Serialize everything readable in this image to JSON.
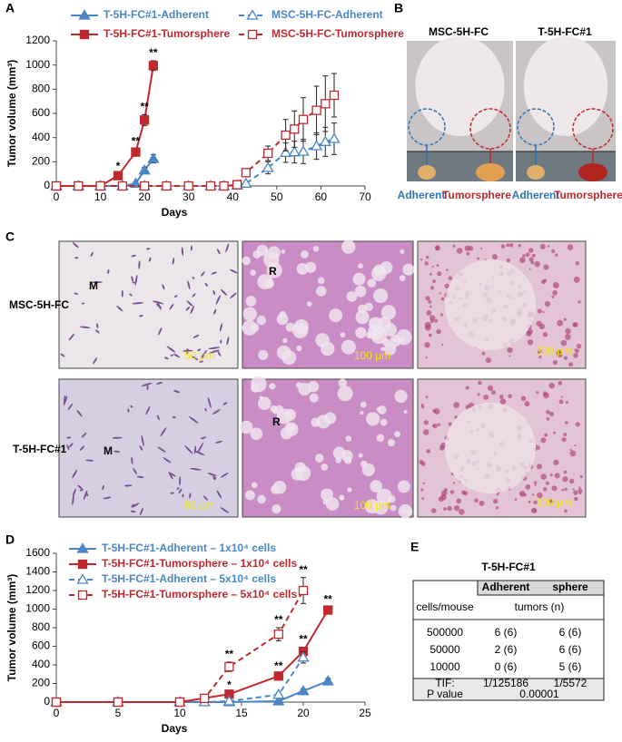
{
  "panel_labels": [
    "A",
    "B",
    "C",
    "D",
    "E"
  ],
  "chart_data": [
    {
      "type": "line",
      "xlabel": "Days",
      "ylabel": "Tumor volume (mm³)",
      "xlim": [
        0,
        70
      ],
      "xticks": [
        0,
        10,
        20,
        30,
        40,
        50,
        60,
        70
      ],
      "ylim": [
        0,
        1200
      ],
      "yticks": [
        0,
        200,
        400,
        600,
        800,
        1000,
        1200
      ],
      "legend_columns": 2,
      "series": [
        {
          "name": "T-5H-FC#1-Adherent",
          "color": "#4a86c5",
          "marker": "triangle",
          "filled": true,
          "dashed": false,
          "x": [
            0,
            5,
            10,
            15,
            18,
            20,
            22
          ],
          "values": [
            0,
            0,
            0,
            0,
            20,
            130,
            225
          ],
          "errors": [
            0,
            0,
            0,
            0,
            10,
            25,
            35
          ]
        },
        {
          "name": "T-5H-FC#1-Tumorsphere",
          "color": "#c0282d",
          "marker": "square",
          "filled": true,
          "dashed": false,
          "x": [
            0,
            5,
            10,
            14,
            18,
            20,
            22
          ],
          "values": [
            0,
            0,
            0,
            85,
            280,
            545,
            995
          ],
          "errors": [
            0,
            0,
            0,
            15,
            25,
            45,
            40
          ],
          "significance": [
            null,
            null,
            null,
            "*",
            "**",
            "**",
            "**"
          ]
        },
        {
          "name": "MSC-5H-FC-Adherent",
          "color": "#4a86c5",
          "marker": "triangle",
          "filled": false,
          "dashed": true,
          "x": [
            0,
            5,
            10,
            15,
            20,
            25,
            30,
            35,
            38,
            41,
            43,
            48,
            52,
            54,
            56,
            59,
            61,
            63
          ],
          "values": [
            0,
            0,
            0,
            0,
            0,
            0,
            0,
            0,
            0,
            5,
            20,
            150,
            275,
            280,
            285,
            330,
            365,
            390
          ],
          "errors": [
            0,
            0,
            0,
            0,
            0,
            0,
            0,
            0,
            0,
            0,
            10,
            50,
            80,
            90,
            100,
            110,
            120,
            130
          ]
        },
        {
          "name": "MSC-5H-FC-Tumorsphere",
          "color": "#c0282d",
          "marker": "square",
          "filled": false,
          "dashed": true,
          "x": [
            0,
            5,
            10,
            15,
            20,
            25,
            30,
            35,
            38,
            41,
            43,
            48,
            52,
            54,
            56,
            59,
            61,
            63
          ],
          "values": [
            0,
            0,
            0,
            0,
            0,
            0,
            0,
            0,
            0,
            10,
            110,
            270,
            420,
            470,
            550,
            625,
            680,
            750
          ],
          "errors": [
            0,
            0,
            0,
            0,
            0,
            0,
            0,
            0,
            0,
            5,
            20,
            60,
            130,
            150,
            180,
            200,
            230,
            180
          ]
        }
      ]
    },
    {
      "type": "line",
      "xlabel": "Days",
      "ylabel": "Tumor volume (mm³)",
      "xlim": [
        0,
        25
      ],
      "xticks": [
        0,
        5,
        10,
        15,
        20,
        25
      ],
      "ylim": [
        0,
        1600
      ],
      "yticks": [
        0,
        200,
        400,
        600,
        800,
        1000,
        1200,
        1400,
        1600
      ],
      "legend_columns": 1,
      "series": [
        {
          "name": "T-5H-FC#1-Adherent – 1x10⁴ cells",
          "color": "#4a86c5",
          "marker": "triangle",
          "filled": true,
          "dashed": false,
          "x": [
            0,
            5,
            10,
            14,
            18,
            20,
            22
          ],
          "values": [
            0,
            0,
            0,
            0,
            10,
            120,
            225
          ],
          "errors": [
            0,
            0,
            0,
            0,
            5,
            20,
            30
          ]
        },
        {
          "name": "T-5H-FC#1-Tumorsphere – 1x10⁴ cells",
          "color": "#c0282d",
          "marker": "square",
          "filled": true,
          "dashed": false,
          "x": [
            0,
            5,
            10,
            14,
            18,
            20,
            22
          ],
          "values": [
            0,
            0,
            0,
            85,
            280,
            545,
            990
          ],
          "errors": [
            0,
            0,
            0,
            15,
            25,
            45,
            30
          ],
          "significance": [
            null,
            null,
            null,
            "*",
            "**",
            "**",
            "**"
          ]
        },
        {
          "name": "T-5H-FC#1-Adherent – 5x10⁴ cells",
          "color": "#4a86c5",
          "marker": "triangle",
          "filled": false,
          "dashed": true,
          "x": [
            0,
            5,
            10,
            12,
            14,
            18,
            20
          ],
          "values": [
            0,
            0,
            0,
            0,
            10,
            80,
            480
          ],
          "errors": [
            0,
            0,
            0,
            0,
            5,
            20,
            60
          ]
        },
        {
          "name": "T-5H-FC#1-Tumorsphere – 5x10⁴ cells",
          "color": "#c0282d",
          "marker": "square",
          "filled": false,
          "dashed": true,
          "x": [
            0,
            5,
            10,
            12,
            14,
            18,
            20
          ],
          "values": [
            0,
            0,
            0,
            40,
            380,
            730,
            1200
          ],
          "errors": [
            0,
            0,
            0,
            10,
            50,
            70,
            140
          ],
          "significance": [
            null,
            null,
            null,
            null,
            "**",
            "**",
            "**"
          ]
        }
      ]
    }
  ],
  "photos": {
    "labels": [
      "MSC-5H-FC",
      "T-5H-FC#1"
    ],
    "arrows": [
      "Adherent",
      "Tumorsphere",
      "Adherent",
      "Tumorsphere"
    ]
  },
  "histology": {
    "rows": [
      "MSC-5H-FC",
      "T-5H-FC#1"
    ],
    "scale_bars": [
      [
        "50 μm",
        "100 μm",
        "300 μm"
      ],
      [
        "50 μm",
        "100 μm",
        "300 μm"
      ]
    ],
    "marks": [
      "M",
      "R",
      "M",
      "R"
    ]
  },
  "table": {
    "title": "T-5H-FC#1",
    "header": [
      "Adherent",
      "sphere"
    ],
    "subheader": [
      "cells/mouse",
      "tumors (n)"
    ],
    "rows": [
      [
        "500000",
        "6 (6)",
        "6 (6)"
      ],
      [
        "50000",
        "2 (6)",
        "6 (6)"
      ],
      [
        "10000",
        "0 (6)",
        "5 (6)"
      ]
    ],
    "tif": [
      "TIF:",
      "1/125186",
      "1/5572"
    ],
    "p_value": [
      "P value",
      "0.00001"
    ]
  }
}
